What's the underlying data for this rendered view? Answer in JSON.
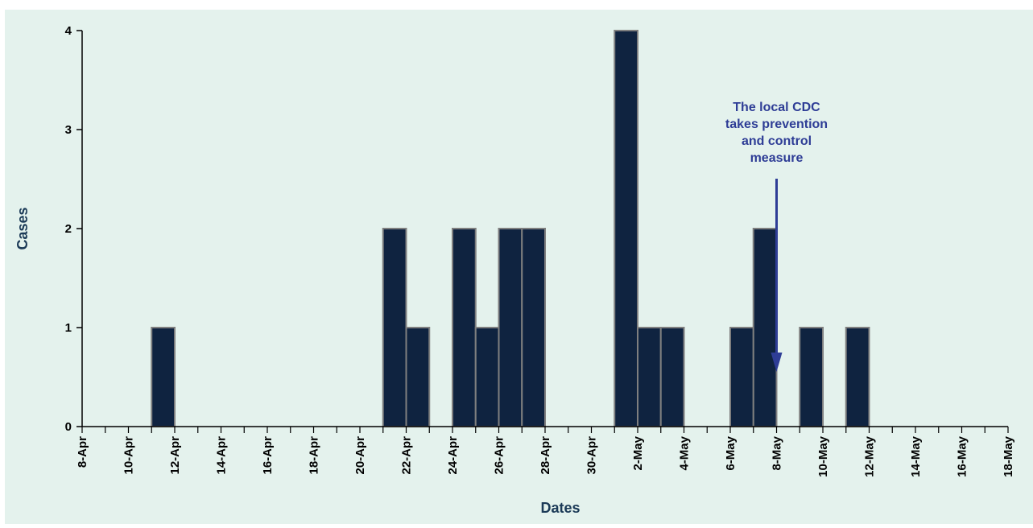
{
  "chart_data": {
    "type": "bar",
    "title": "",
    "xlabel": "Dates",
    "ylabel": "Cases",
    "ylim": [
      0,
      4
    ],
    "yticks": [
      0,
      1,
      2,
      3,
      4
    ],
    "x_range": [
      "2024-04-08",
      "2024-05-18"
    ],
    "xtick_labels": [
      "8-Apr",
      "10-Apr",
      "12-Apr",
      "14-Apr",
      "16-Apr",
      "18-Apr",
      "20-Apr",
      "22-Apr",
      "24-Apr",
      "26-Apr",
      "28-Apr",
      "30-Apr",
      "2-May",
      "4-May",
      "6-May",
      "8-May",
      "10-May",
      "12-May",
      "14-May",
      "16-May",
      "18-May"
    ],
    "bars": [
      {
        "date": "2024-04-11",
        "cases": 1
      },
      {
        "date": "2024-04-21",
        "cases": 2
      },
      {
        "date": "2024-04-22",
        "cases": 1
      },
      {
        "date": "2024-04-24",
        "cases": 2
      },
      {
        "date": "2024-04-25",
        "cases": 1
      },
      {
        "date": "2024-04-26",
        "cases": 2
      },
      {
        "date": "2024-04-27",
        "cases": 2
      },
      {
        "date": "2024-05-01",
        "cases": 4
      },
      {
        "date": "2024-05-02",
        "cases": 1
      },
      {
        "date": "2024-05-03",
        "cases": 1
      },
      {
        "date": "2024-05-06",
        "cases": 1
      },
      {
        "date": "2024-05-07",
        "cases": 2
      },
      {
        "date": "2024-05-09",
        "cases": 1
      },
      {
        "date": "2024-05-11",
        "cases": 1
      }
    ],
    "annotation": {
      "lines": [
        "The local CDC",
        "takes prevention",
        "and control",
        "measure"
      ],
      "date": "2024-05-08"
    },
    "grid": false,
    "colors": {
      "bar_fill": "#0f2340",
      "bar_edge": "#7f7f7f",
      "annotation": "#2e3d96",
      "axis": "#000000",
      "background": "#e4f2ed"
    }
  }
}
